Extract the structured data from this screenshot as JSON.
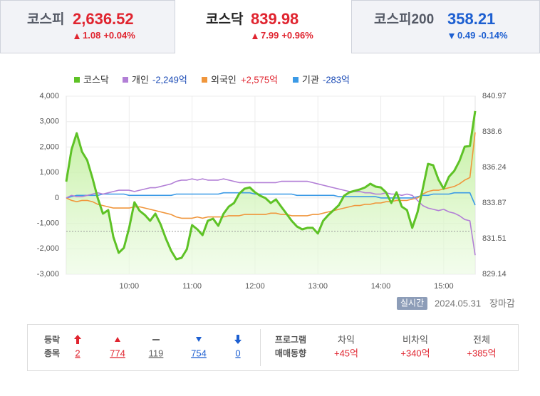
{
  "tabs": [
    {
      "name": "코스피",
      "value": "2,636.52",
      "change": "1.08",
      "change_pct": "+0.04%",
      "direction": "up",
      "selected": false
    },
    {
      "name": "코스닥",
      "value": "839.98",
      "change": "7.99",
      "change_pct": "+0.96%",
      "direction": "up",
      "selected": true
    },
    {
      "name": "코스피200",
      "value": "358.21",
      "change": "0.49",
      "change_pct": "-0.14%",
      "direction": "down",
      "selected": false
    }
  ],
  "chart_data": {
    "type": "line",
    "x": [
      "09:00",
      "09:05",
      "09:10",
      "09:15",
      "09:20",
      "09:25",
      "09:30",
      "09:35",
      "09:40",
      "09:45",
      "09:50",
      "09:55",
      "10:00",
      "10:05",
      "10:10",
      "10:15",
      "10:20",
      "10:25",
      "10:30",
      "10:35",
      "10:40",
      "10:45",
      "10:50",
      "10:55",
      "11:00",
      "11:05",
      "11:10",
      "11:15",
      "11:20",
      "11:25",
      "11:30",
      "11:35",
      "11:40",
      "11:45",
      "11:50",
      "11:55",
      "12:00",
      "12:05",
      "12:10",
      "12:15",
      "12:20",
      "12:25",
      "12:30",
      "12:35",
      "12:40",
      "12:45",
      "12:50",
      "12:55",
      "13:00",
      "13:05",
      "13:10",
      "13:15",
      "13:20",
      "13:25",
      "13:30",
      "13:35",
      "13:40",
      "13:45",
      "13:50",
      "13:55",
      "14:00",
      "14:05",
      "14:10",
      "14:15",
      "14:20",
      "14:25",
      "14:30",
      "14:35",
      "14:40",
      "14:45",
      "14:50",
      "14:55",
      "15:00",
      "15:05",
      "15:10",
      "15:15",
      "15:20",
      "15:25",
      "15:30"
    ],
    "series": [
      {
        "name": "코스닥",
        "color": "#5ec226",
        "axis": "y2",
        "values": [
          835.29,
          837.42,
          838.51,
          837.28,
          836.71,
          835.53,
          834.2,
          833.16,
          833.4,
          831.6,
          830.56,
          830.89,
          832.22,
          833.92,
          833.35,
          833.07,
          832.69,
          833.16,
          832.45,
          831.51,
          830.7,
          830.13,
          830.23,
          830.8,
          832.4,
          832.12,
          831.74,
          832.69,
          832.83,
          832.36,
          833.16,
          833.63,
          833.87,
          834.49,
          834.82,
          834.91,
          834.58,
          834.35,
          834.2,
          833.87,
          834.11,
          833.63,
          833.16,
          832.69,
          832.31,
          832.12,
          832.22,
          832.22,
          831.84,
          832.69,
          833.07,
          833.4,
          833.73,
          834.35,
          834.58,
          834.68,
          834.77,
          834.91,
          835.15,
          834.96,
          834.91,
          834.58,
          833.87,
          834.58,
          833.63,
          833.4,
          832.22,
          833.26,
          834.82,
          836.47,
          836.38,
          835.43,
          834.82,
          835.62,
          836.0,
          836.66,
          837.61,
          837.66,
          839.98
        ]
      },
      {
        "name": "개인",
        "total": "-2,249억",
        "color": "#b27fd6",
        "values": [
          0,
          100,
          50,
          50,
          100,
          150,
          200,
          150,
          200,
          250,
          300,
          300,
          300,
          250,
          300,
          350,
          400,
          400,
          450,
          500,
          550,
          650,
          700,
          700,
          750,
          700,
          750,
          700,
          700,
          700,
          750,
          700,
          650,
          600,
          600,
          600,
          600,
          600,
          600,
          600,
          600,
          650,
          650,
          650,
          650,
          650,
          650,
          600,
          550,
          500,
          450,
          400,
          350,
          300,
          250,
          250,
          250,
          200,
          200,
          150,
          150,
          200,
          150,
          150,
          100,
          150,
          100,
          -100,
          -300,
          -400,
          -450,
          -500,
          -450,
          -550,
          -600,
          -700,
          -850,
          -900,
          -2249
        ]
      },
      {
        "name": "외국인",
        "total": "+2,575억",
        "color": "#f0963c",
        "values": [
          0,
          -100,
          -150,
          -100,
          -100,
          -150,
          -250,
          -300,
          -350,
          -400,
          -400,
          -400,
          -400,
          -350,
          -350,
          -400,
          -450,
          -500,
          -550,
          -600,
          -650,
          -750,
          -800,
          -800,
          -800,
          -750,
          -800,
          -750,
          -750,
          -750,
          -750,
          -700,
          -700,
          -700,
          -650,
          -650,
          -650,
          -650,
          -650,
          -600,
          -600,
          -650,
          -650,
          -700,
          -700,
          -700,
          -700,
          -650,
          -650,
          -600,
          -550,
          -500,
          -450,
          -400,
          -350,
          -300,
          -300,
          -250,
          -250,
          -200,
          -200,
          -150,
          -150,
          -100,
          -100,
          -100,
          -50,
          0,
          150,
          250,
          300,
          300,
          350,
          400,
          450,
          550,
          700,
          800,
          2575
        ]
      },
      {
        "name": "기관",
        "total": "-283억",
        "color": "#3b9ae6",
        "values": [
          0,
          50,
          100,
          100,
          100,
          100,
          100,
          150,
          150,
          150,
          150,
          150,
          100,
          100,
          100,
          100,
          100,
          100,
          100,
          100,
          100,
          150,
          150,
          150,
          150,
          150,
          150,
          150,
          150,
          150,
          200,
          200,
          200,
          200,
          200,
          200,
          150,
          150,
          150,
          150,
          150,
          150,
          150,
          150,
          100,
          100,
          100,
          100,
          100,
          100,
          100,
          100,
          50,
          50,
          50,
          50,
          50,
          50,
          50,
          50,
          0,
          0,
          0,
          0,
          0,
          0,
          0,
          50,
          100,
          100,
          150,
          150,
          150,
          150,
          200,
          200,
          200,
          200,
          -283
        ]
      }
    ],
    "xlim": [
      "09:00",
      "15:30"
    ],
    "xticks": [
      "10:00",
      "11:00",
      "12:00",
      "13:00",
      "14:00",
      "15:00"
    ],
    "ylim": [
      -3000,
      4000
    ],
    "yticks": [
      {
        "value": -3000,
        "label": "-3,000"
      },
      {
        "value": -2000,
        "label": "-2,000"
      },
      {
        "value": -1000,
        "label": "-1,000"
      },
      0,
      {
        "value": 1000,
        "label": "1,000"
      },
      {
        "value": 2000,
        "label": "2,000"
      },
      {
        "value": 3000,
        "label": "3,000"
      },
      {
        "value": 4000,
        "label": "4,000"
      }
    ],
    "y2lim": [
      829.14,
      840.97
    ],
    "y2ticks": [
      829.14,
      831.51,
      833.87,
      836.24,
      838.6,
      840.97
    ],
    "reference_line": 831.99,
    "grid": true,
    "legend": "top"
  },
  "status": {
    "badge": "실시간",
    "date": "2024.05.31",
    "state": "장마감"
  },
  "breadth": {
    "label": [
      "등락",
      "종목"
    ],
    "counts": [
      2,
      774,
      119,
      754,
      0
    ]
  },
  "program": {
    "label": [
      "프로그램",
      "매매동향"
    ],
    "items": [
      {
        "name": "차익",
        "value": "+45억"
      },
      {
        "name": "비차익",
        "value": "+340억"
      },
      {
        "name": "전체",
        "value": "+385억"
      }
    ]
  }
}
